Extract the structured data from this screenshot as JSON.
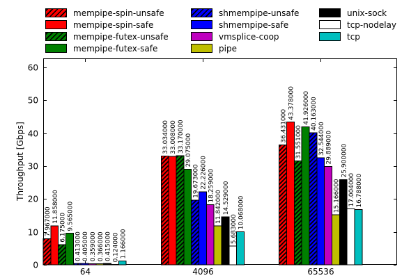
{
  "figure": {
    "background": "#ffffff"
  },
  "chart_data": {
    "type": "bar",
    "title": "",
    "xlabel": "",
    "ylabel": "Throughput [Gbps]",
    "categories": [
      "64",
      "4096",
      "65536"
    ],
    "yticks": [
      0,
      10,
      20,
      30,
      40,
      50,
      60
    ],
    "ylim": [
      0,
      62.75
    ],
    "grid": false,
    "bar_value_labels": true,
    "value_label_decimals": 6,
    "legend_position": "top",
    "legend_columns": [
      [
        0,
        1,
        2,
        3
      ],
      [
        4,
        5,
        6,
        7
      ],
      [
        8,
        9,
        10
      ]
    ],
    "series": [
      {
        "name": "mempipe-spin-unsafe",
        "color": "#ff0000",
        "hatch": true,
        "values": [
          7.967,
          33.034,
          36.431
        ]
      },
      {
        "name": "mempipe-spin-safe",
        "color": "#ff0000",
        "hatch": false,
        "values": [
          11.858,
          33.008,
          43.378
        ]
      },
      {
        "name": "mempipe-futex-unsafe",
        "color": "#008000",
        "hatch": true,
        "values": [
          6.175,
          33.17,
          31.551
        ]
      },
      {
        "name": "mempipe-futex-safe",
        "color": "#008000",
        "hatch": false,
        "values": [
          9.565,
          29.075,
          41.926
        ]
      },
      {
        "name": "shmempipe-unsafe",
        "color": "#0000ff",
        "hatch": true,
        "values": [
          0.413,
          19.673,
          40.163
        ]
      },
      {
        "name": "shmempipe-safe",
        "color": "#0000ff",
        "hatch": false,
        "values": [
          0.405,
          22.226,
          32.544
        ]
      },
      {
        "name": "vmsplice-coop",
        "color": "#bf00bf",
        "hatch": false,
        "values": [
          0.359,
          18.259,
          29.889
        ]
      },
      {
        "name": "pipe",
        "color": "#bfbf00",
        "hatch": false,
        "values": [
          0.366,
          11.842,
          15.166
        ]
      },
      {
        "name": "unix-sock",
        "color": "#000000",
        "hatch": false,
        "values": [
          0.415,
          14.529,
          25.9
        ]
      },
      {
        "name": "tcp-nodelay",
        "color": "#ffffff",
        "hatch": false,
        "values": [
          0.124,
          5.683,
          17.004
        ]
      },
      {
        "name": "tcp",
        "color": "#00bfbf",
        "hatch": false,
        "values": [
          1.166,
          10.068,
          16.788
        ]
      }
    ]
  }
}
